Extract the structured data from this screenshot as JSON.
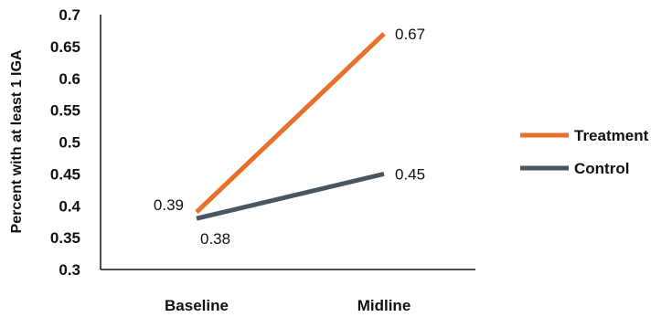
{
  "chart_data": {
    "type": "line",
    "categories": [
      "Baseline",
      "Midline"
    ],
    "series": [
      {
        "name": "Treatment",
        "values": [
          0.39,
          0.67
        ],
        "color": "#e8702a"
      },
      {
        "name": "Control",
        "values": [
          0.38,
          0.45
        ],
        "color": "#4a5560"
      }
    ],
    "data_labels": {
      "Treatment": [
        "0.39",
        "0.67"
      ],
      "Control": [
        "0.38",
        "0.45"
      ]
    },
    "ylabel": "Percent with at least 1 IGA",
    "xlabel": "",
    "ylim": [
      0.3,
      0.7
    ],
    "yticks": [
      "0.3",
      "0.35",
      "0.4",
      "0.45",
      "0.5",
      "0.55",
      "0.6",
      "0.65",
      "0.7"
    ],
    "grid": false,
    "legend_position": "right"
  }
}
